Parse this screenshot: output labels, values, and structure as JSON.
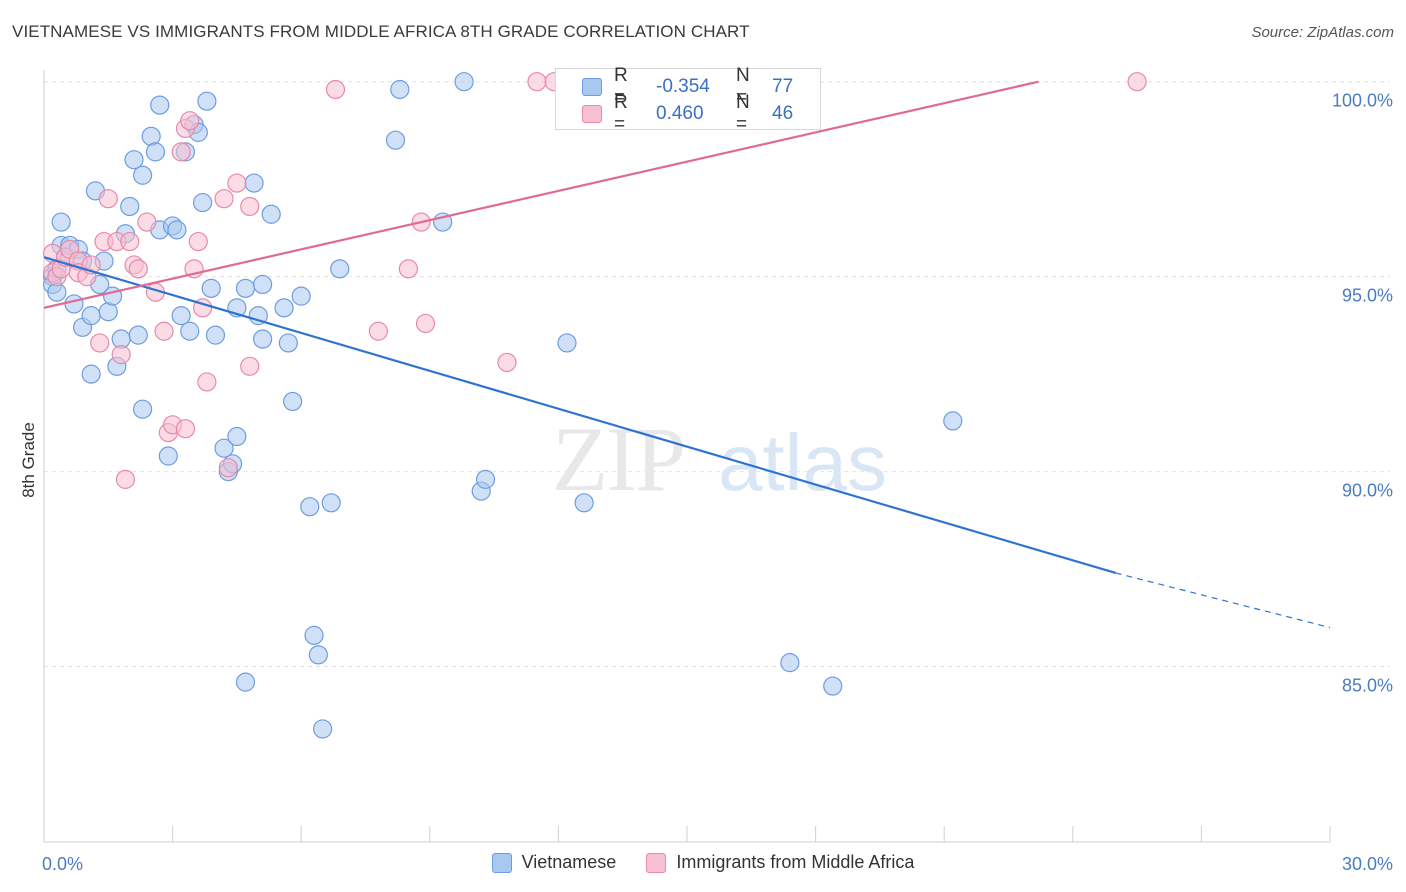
{
  "title": "VIETNAMESE VS IMMIGRANTS FROM MIDDLE AFRICA 8TH GRADE CORRELATION CHART",
  "source": "Source: ZipAtlas.com",
  "watermark": {
    "zip": "ZIP",
    "atlas": "atlas"
  },
  "stats": [
    {
      "r_label": "R =",
      "r_value": "-0.354",
      "n_label": "N =",
      "n_value": "77",
      "color": "#a9c8f0",
      "border": "#6d9de0"
    },
    {
      "r_label": "R =",
      "r_value": "0.460",
      "n_label": "N =",
      "n_value": "46",
      "color": "#f7bfd2",
      "border": "#e889a8"
    }
  ],
  "legend": [
    {
      "label": "Vietnamese",
      "color": "#a9c8f0",
      "border": "#6d9de0"
    },
    {
      "label": "Immigrants from Middle Africa",
      "color": "#f7bfd2",
      "border": "#e889a8"
    }
  ],
  "chart_data": {
    "type": "scatter",
    "title": "VIETNAMESE VS IMMIGRANTS FROM MIDDLE AFRICA 8TH GRADE CORRELATION CHART",
    "xlabel": "",
    "ylabel": "8th Grade",
    "xlim": [
      0,
      30
    ],
    "ylim": [
      80.5,
      100.3
    ],
    "x_tick_labels": [
      {
        "value": 0,
        "label": "0.0%"
      },
      {
        "value": 30,
        "label": "30.0%"
      }
    ],
    "y_tick_labels": [
      {
        "value": 100,
        "label": "100.0%"
      },
      {
        "value": 95,
        "label": "95.0%"
      },
      {
        "value": 90,
        "label": "90.0%"
      },
      {
        "value": 85,
        "label": "85.0%"
      }
    ],
    "grid": true,
    "legend_position": "bottom",
    "series": [
      {
        "name": "Vietnamese",
        "color": "#6d9de0",
        "fill": "#a9c8f0",
        "trend": {
          "x": [
            0,
            25.0
          ],
          "y": [
            95.5,
            87.4
          ],
          "dashed_to": [
            30,
            86.0
          ],
          "color": "#2f73d0"
        },
        "points": [
          [
            0.2,
            95.0
          ],
          [
            0.2,
            94.8
          ],
          [
            0.3,
            95.2
          ],
          [
            0.3,
            94.6
          ],
          [
            0.4,
            95.8
          ],
          [
            0.5,
            95.5
          ],
          [
            0.4,
            96.4
          ],
          [
            0.6,
            95.8
          ],
          [
            0.7,
            94.3
          ],
          [
            0.8,
            95.7
          ],
          [
            0.9,
            93.7
          ],
          [
            0.9,
            95.4
          ],
          [
            1.1,
            92.5
          ],
          [
            1.1,
            94.0
          ],
          [
            1.2,
            97.2
          ],
          [
            1.3,
            94.8
          ],
          [
            1.4,
            95.4
          ],
          [
            1.5,
            94.1
          ],
          [
            1.6,
            94.5
          ],
          [
            1.7,
            92.7
          ],
          [
            1.8,
            93.4
          ],
          [
            1.9,
            96.1
          ],
          [
            2.0,
            96.8
          ],
          [
            2.1,
            98.0
          ],
          [
            2.2,
            93.5
          ],
          [
            2.3,
            97.6
          ],
          [
            2.3,
            91.6
          ],
          [
            2.5,
            98.6
          ],
          [
            2.6,
            98.2
          ],
          [
            2.7,
            96.2
          ],
          [
            2.7,
            99.4
          ],
          [
            2.9,
            90.4
          ],
          [
            3.0,
            96.3
          ],
          [
            3.1,
            96.2
          ],
          [
            3.2,
            94.0
          ],
          [
            3.3,
            98.2
          ],
          [
            3.4,
            93.6
          ],
          [
            3.5,
            98.9
          ],
          [
            3.6,
            98.7
          ],
          [
            3.7,
            96.9
          ],
          [
            3.8,
            99.5
          ],
          [
            3.9,
            94.7
          ],
          [
            4.0,
            93.5
          ],
          [
            4.2,
            90.6
          ],
          [
            4.3,
            90.0
          ],
          [
            4.4,
            90.2
          ],
          [
            4.5,
            94.2
          ],
          [
            4.5,
            90.9
          ],
          [
            4.7,
            94.7
          ],
          [
            4.9,
            97.4
          ],
          [
            5.0,
            94.0
          ],
          [
            5.1,
            93.4
          ],
          [
            5.1,
            94.8
          ],
          [
            5.3,
            96.6
          ],
          [
            5.6,
            94.2
          ],
          [
            5.7,
            93.3
          ],
          [
            5.8,
            91.8
          ],
          [
            6.0,
            94.5
          ],
          [
            6.2,
            89.1
          ],
          [
            6.3,
            85.8
          ],
          [
            6.4,
            85.3
          ],
          [
            6.5,
            83.4
          ],
          [
            6.7,
            89.2
          ],
          [
            6.9,
            95.2
          ],
          [
            4.7,
            84.6
          ],
          [
            8.2,
            98.5
          ],
          [
            8.3,
            99.8
          ],
          [
            9.3,
            96.4
          ],
          [
            9.8,
            100.0
          ],
          [
            10.2,
            89.5
          ],
          [
            10.3,
            89.8
          ],
          [
            12.2,
            93.3
          ],
          [
            12.6,
            89.2
          ],
          [
            15.5,
            100.0
          ],
          [
            17.4,
            85.1
          ],
          [
            18.4,
            84.5
          ],
          [
            21.2,
            91.3
          ]
        ]
      },
      {
        "name": "Immigrants from Middle Africa",
        "color": "#e889a8",
        "fill": "#f7bfd2",
        "trend": {
          "x": [
            0,
            23.2
          ],
          "y": [
            94.2,
            100.0
          ],
          "color": "#e06a93"
        },
        "points": [
          [
            0.2,
            95.6
          ],
          [
            0.2,
            95.1
          ],
          [
            0.3,
            95.0
          ],
          [
            0.4,
            95.2
          ],
          [
            0.5,
            95.5
          ],
          [
            0.6,
            95.7
          ],
          [
            0.8,
            95.4
          ],
          [
            0.8,
            95.1
          ],
          [
            1.0,
            95.0
          ],
          [
            1.1,
            95.3
          ],
          [
            1.3,
            93.3
          ],
          [
            1.4,
            95.9
          ],
          [
            1.5,
            97.0
          ],
          [
            1.7,
            95.9
          ],
          [
            1.8,
            93.0
          ],
          [
            1.9,
            89.8
          ],
          [
            2.0,
            95.9
          ],
          [
            2.1,
            95.3
          ],
          [
            2.2,
            95.2
          ],
          [
            2.4,
            96.4
          ],
          [
            2.6,
            94.6
          ],
          [
            2.8,
            93.6
          ],
          [
            2.9,
            91.0
          ],
          [
            3.0,
            91.2
          ],
          [
            3.2,
            98.2
          ],
          [
            3.3,
            91.1
          ],
          [
            3.3,
            98.8
          ],
          [
            3.4,
            99.0
          ],
          [
            3.5,
            95.2
          ],
          [
            3.6,
            95.9
          ],
          [
            3.7,
            94.2
          ],
          [
            3.8,
            92.3
          ],
          [
            4.2,
            97.0
          ],
          [
            4.3,
            90.1
          ],
          [
            4.5,
            97.4
          ],
          [
            4.8,
            92.7
          ],
          [
            4.8,
            96.8
          ],
          [
            6.8,
            99.8
          ],
          [
            7.8,
            93.6
          ],
          [
            8.5,
            95.2
          ],
          [
            8.8,
            96.4
          ],
          [
            8.9,
            93.8
          ],
          [
            10.8,
            92.8
          ],
          [
            11.5,
            100.0
          ],
          [
            11.9,
            100.0
          ],
          [
            25.5,
            100.0
          ]
        ]
      }
    ]
  }
}
